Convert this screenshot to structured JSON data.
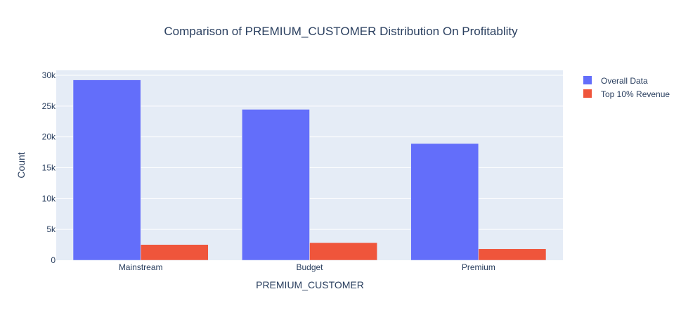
{
  "chart_data": {
    "type": "bar",
    "title": "Comparison of PREMIUM_CUSTOMER Distribution On Profitablity",
    "xlabel": "PREMIUM_CUSTOMER",
    "ylabel": "Count",
    "categories": [
      "Mainstream",
      "Budget",
      "Premium"
    ],
    "series": [
      {
        "name": "Overall Data",
        "values": [
          29245,
          24470,
          18922
        ],
        "color": "#636efa"
      },
      {
        "name": "Top 10% Revenue",
        "values": [
          2540,
          2850,
          1850
        ],
        "color": "#ef553b"
      }
    ],
    "ylim": [
      0,
      30800
    ],
    "yticks": [
      0,
      5000,
      10000,
      15000,
      20000,
      25000,
      30000
    ],
    "ytick_labels": [
      "0",
      "5k",
      "10k",
      "15k",
      "20k",
      "25k",
      "30k"
    ],
    "grid": true,
    "legend_position": "top-right",
    "plot_background": "#e5ecf6",
    "barmode": "group"
  }
}
